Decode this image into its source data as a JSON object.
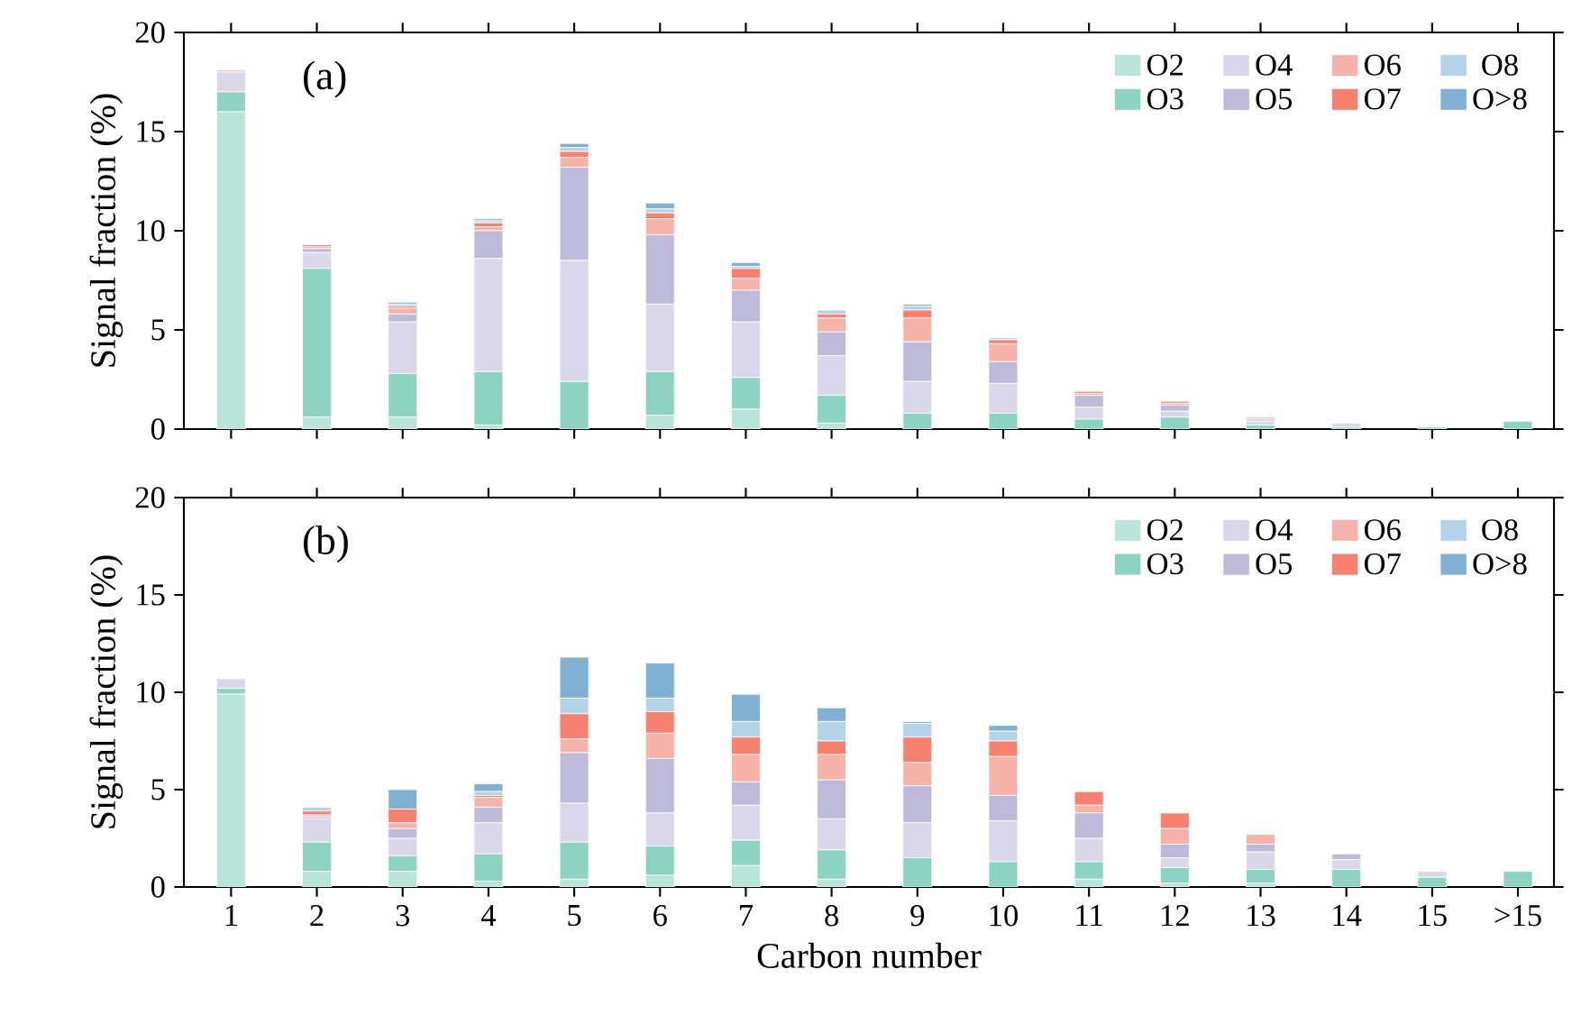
{
  "chart_data": [
    {
      "type": "bar",
      "stacked": true,
      "categories": [
        null,
        null,
        null,
        null,
        null,
        null,
        null,
        null,
        null,
        null,
        null,
        null,
        null,
        null,
        null,
        null
      ],
      "ylabel": "Signal fraction (%)",
      "ylim": [
        0,
        20
      ],
      "yticks": [
        0,
        5,
        10,
        15,
        20
      ],
      "legend": "top right",
      "annotations": [
        "(a)"
      ],
      "series": [
        {
          "name": "O2",
          "color": "#b9e4da",
          "values": [
            16,
            0.6,
            0.6,
            0.2,
            0,
            0.7,
            1.0,
            0.3,
            0,
            0,
            0,
            0,
            0,
            0,
            0,
            0
          ]
        },
        {
          "name": "O3",
          "color": "#8dd3c1",
          "values": [
            1,
            7.5,
            2.2,
            2.7,
            2.4,
            2.2,
            1.6,
            1.4,
            0.8,
            0.8,
            0.5,
            0.6,
            0.2,
            0.1,
            0.1,
            0.4
          ]
        },
        {
          "name": "O4",
          "color": "#dad7ea",
          "values": [
            1,
            0.8,
            2.6,
            5.7,
            6.1,
            3.4,
            2.8,
            2.0,
            1.6,
            1.5,
            0.6,
            0.3,
            0.2,
            0.2,
            0,
            0
          ]
        },
        {
          "name": "O5",
          "color": "#bebada",
          "values": [
            0,
            0.2,
            0.4,
            1.4,
            4.7,
            3.5,
            1.6,
            1.2,
            2.0,
            1.1,
            0.6,
            0.3,
            0.1,
            0,
            0,
            0
          ]
        },
        {
          "name": "O6",
          "color": "#f6b3aa",
          "values": [
            0.1,
            0.1,
            0.3,
            0.2,
            0.5,
            0.8,
            0.6,
            0.7,
            1.2,
            0.9,
            0.1,
            0.1,
            0.1,
            0,
            0,
            0
          ]
        },
        {
          "name": "O7",
          "color": "#f7806f",
          "values": [
            0,
            0.1,
            0.1,
            0.2,
            0.3,
            0.3,
            0.5,
            0.2,
            0.4,
            0.2,
            0.1,
            0.1,
            0,
            0,
            0,
            0
          ]
        },
        {
          "name": "O8",
          "color": "#b3d3e8",
          "values": [
            0,
            0,
            0.1,
            0.1,
            0.2,
            0.2,
            0.1,
            0.2,
            0.2,
            0.1,
            0,
            0,
            0,
            0,
            0,
            0
          ]
        },
        {
          "name": "O>8",
          "color": "#80b1d3",
          "values": [
            0,
            0,
            0.1,
            0.1,
            0.2,
            0.3,
            0.2,
            0,
            0.1,
            0,
            0,
            0,
            0,
            0,
            0,
            0
          ]
        }
      ]
    },
    {
      "type": "bar",
      "stacked": true,
      "categories": [
        "1",
        "2",
        "3",
        "4",
        "5",
        "6",
        "7",
        "8",
        "9",
        "10",
        "11",
        "12",
        "13",
        "14",
        "15",
        ">15"
      ],
      "xlabel": "Carbon number",
      "ylabel": "Signal fraction (%)",
      "ylim": [
        0,
        20
      ],
      "yticks": [
        0,
        5,
        10,
        15,
        20
      ],
      "legend": "top right",
      "annotations": [
        "(b)"
      ],
      "series": [
        {
          "name": "O2",
          "color": "#b9e4da",
          "values": [
            9.9,
            0.8,
            0.8,
            0.3,
            0.4,
            0.6,
            1.1,
            0.4,
            0,
            0,
            0.4,
            0.2,
            0.2,
            0,
            0,
            0
          ]
        },
        {
          "name": "O3",
          "color": "#8dd3c1",
          "values": [
            0.3,
            1.5,
            0.8,
            1.4,
            1.9,
            1.5,
            1.3,
            1.5,
            1.5,
            1.3,
            0.9,
            0.8,
            0.7,
            0.9,
            0.5,
            0.8
          ]
        },
        {
          "name": "O4",
          "color": "#dad7ea",
          "values": [
            0.5,
            1.2,
            0.9,
            1.6,
            2.0,
            1.7,
            1.8,
            1.6,
            1.8,
            2.1,
            1.2,
            0.5,
            0.9,
            0.5,
            0.3,
            0
          ]
        },
        {
          "name": "O5",
          "color": "#bebada",
          "values": [
            0,
            0.1,
            0.5,
            0.8,
            2.6,
            2.8,
            1.2,
            2.0,
            1.9,
            1.3,
            1.3,
            0.7,
            0.4,
            0.3,
            0,
            0
          ]
        },
        {
          "name": "O6",
          "color": "#f6b3aa",
          "values": [
            0,
            0.1,
            0.3,
            0.5,
            0.7,
            1.3,
            1.4,
            1.3,
            1.2,
            2.0,
            0.4,
            0.8,
            0.5,
            0,
            0,
            0
          ]
        },
        {
          "name": "O7",
          "color": "#f7806f",
          "values": [
            0,
            0.2,
            0.7,
            0.1,
            1.3,
            1.1,
            0.9,
            0.7,
            1.3,
            0.8,
            0.7,
            0.8,
            0,
            0,
            0,
            0
          ]
        },
        {
          "name": "O8",
          "color": "#b3d3e8",
          "values": [
            0,
            0.2,
            0,
            0.2,
            0.8,
            0.7,
            0.8,
            1.0,
            0.7,
            0.5,
            0,
            0,
            0,
            0,
            0,
            0
          ]
        },
        {
          "name": "O>8",
          "color": "#80b1d3",
          "values": [
            0,
            0,
            1.0,
            0.4,
            2.1,
            1.8,
            1.4,
            0.7,
            0.1,
            0.3,
            0,
            0,
            0,
            0,
            0,
            0
          ]
        }
      ]
    }
  ]
}
